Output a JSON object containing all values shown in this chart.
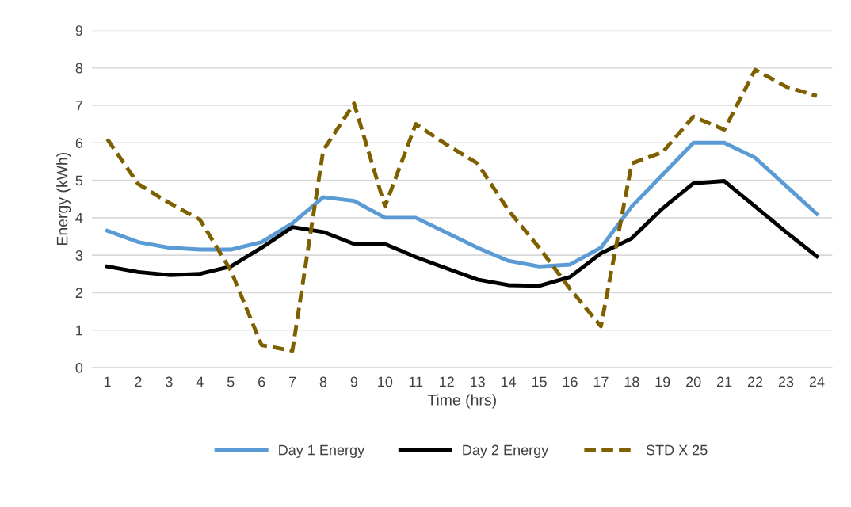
{
  "chart_data": {
    "type": "line",
    "xlabel": "Time (hrs)",
    "ylabel": "Energy (kWh)",
    "categories": [
      "1",
      "2",
      "3",
      "4",
      "5",
      "6",
      "7",
      "8",
      "9",
      "10",
      "11",
      "12",
      "13",
      "14",
      "15",
      "16",
      "17",
      "18",
      "19",
      "20",
      "21",
      "22",
      "23",
      "24"
    ],
    "ylim": [
      0,
      9
    ],
    "yticks": [
      0,
      1,
      2,
      3,
      4,
      5,
      6,
      7,
      8,
      9
    ],
    "grid": "y",
    "legend": "bottom",
    "marker": "none",
    "series": [
      {
        "name": "Day 1 Energy",
        "color": "#5b9bd5",
        "line_style": "solid",
        "values": [
          3.65,
          3.35,
          3.2,
          3.15,
          3.15,
          3.35,
          3.85,
          4.55,
          4.45,
          4.0,
          4.0,
          3.6,
          3.2,
          2.85,
          2.7,
          2.75,
          3.2,
          4.3,
          5.15,
          6.0,
          6.0,
          5.6,
          4.85,
          4.1
        ]
      },
      {
        "name": "Day 2 Energy",
        "color": "#000000",
        "line_style": "solid",
        "values": [
          2.7,
          2.55,
          2.47,
          2.5,
          2.7,
          3.2,
          3.75,
          3.62,
          3.3,
          3.3,
          2.95,
          2.65,
          2.35,
          2.2,
          2.18,
          2.42,
          3.05,
          3.45,
          4.25,
          4.92,
          4.98,
          4.3,
          3.62,
          2.97
        ]
      },
      {
        "name": "STD X 25",
        "color": "#7f6000",
        "line_style": "dashed",
        "values": [
          6.1,
          4.9,
          4.4,
          3.95,
          2.6,
          0.6,
          0.45,
          5.8,
          7.05,
          4.3,
          6.5,
          5.95,
          5.45,
          4.2,
          3.2,
          2.1,
          1.1,
          5.45,
          5.75,
          6.7,
          6.35,
          7.95,
          7.5,
          7.25
        ]
      }
    ]
  }
}
